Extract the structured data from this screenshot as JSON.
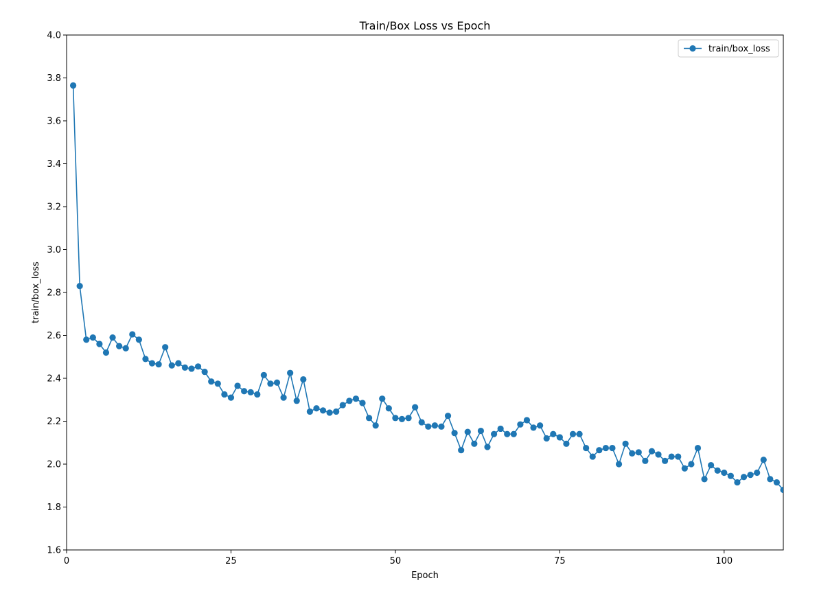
{
  "chart_data": {
    "type": "line",
    "title": "Train/Box Loss vs Epoch",
    "xlabel": "Epoch",
    "ylabel": "train/box_loss",
    "xlim": [
      0,
      109
    ],
    "ylim": [
      1.6,
      4.0
    ],
    "xticks": [
      0,
      25,
      50,
      75,
      100
    ],
    "yticks": [
      1.6,
      1.8,
      2.0,
      2.2,
      2.4,
      2.6,
      2.8,
      3.0,
      3.2,
      3.4,
      3.6,
      3.8,
      4.0
    ],
    "grid": false,
    "legend_position": "top-right",
    "series": [
      {
        "name": "train/box_loss",
        "color": "#1f77b4",
        "marker": "circle",
        "x": [
          1,
          2,
          3,
          4,
          5,
          6,
          7,
          8,
          9,
          10,
          11,
          12,
          13,
          14,
          15,
          16,
          17,
          18,
          19,
          20,
          21,
          22,
          23,
          24,
          25,
          26,
          27,
          28,
          29,
          30,
          31,
          32,
          33,
          34,
          35,
          36,
          37,
          38,
          39,
          40,
          41,
          42,
          43,
          44,
          45,
          46,
          47,
          48,
          49,
          50,
          51,
          52,
          53,
          54,
          55,
          56,
          57,
          58,
          59,
          60,
          61,
          62,
          63,
          64,
          65,
          66,
          67,
          68,
          69,
          70,
          71,
          72,
          73,
          74,
          75,
          76,
          77,
          78,
          79,
          80,
          81,
          82,
          83,
          84,
          85,
          86,
          87,
          88,
          89,
          90,
          91,
          92,
          93,
          94,
          95,
          96,
          97,
          98,
          99,
          100,
          101,
          102,
          103,
          104,
          105,
          106,
          107,
          108,
          109
        ],
        "y": [
          3.765,
          2.83,
          2.58,
          2.59,
          2.56,
          2.52,
          2.59,
          2.55,
          2.54,
          2.605,
          2.58,
          2.49,
          2.47,
          2.465,
          2.545,
          2.46,
          2.47,
          2.45,
          2.445,
          2.455,
          2.43,
          2.385,
          2.375,
          2.325,
          2.31,
          2.365,
          2.34,
          2.335,
          2.325,
          2.415,
          2.375,
          2.38,
          2.31,
          2.425,
          2.295,
          2.395,
          2.245,
          2.26,
          2.25,
          2.24,
          2.245,
          2.275,
          2.295,
          2.305,
          2.285,
          2.215,
          2.18,
          2.305,
          2.26,
          2.215,
          2.21,
          2.215,
          2.265,
          2.195,
          2.175,
          2.18,
          2.175,
          2.225,
          2.145,
          2.065,
          2.15,
          2.095,
          2.155,
          2.08,
          2.14,
          2.165,
          2.14,
          2.14,
          2.185,
          2.205,
          2.17,
          2.18,
          2.12,
          2.14,
          2.125,
          2.095,
          2.14,
          2.14,
          2.075,
          2.035,
          2.065,
          2.075,
          2.075,
          2.0,
          2.095,
          2.05,
          2.055,
          2.015,
          2.06,
          2.045,
          2.015,
          2.035,
          2.035,
          1.98,
          2.0,
          2.075,
          1.93,
          1.995,
          1.97,
          1.96,
          1.945,
          1.915,
          1.94,
          1.95,
          1.96,
          2.02,
          1.93,
          1.915,
          1.88
        ]
      }
    ]
  }
}
